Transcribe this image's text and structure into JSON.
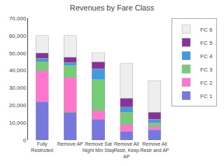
{
  "chart_data": {
    "type": "bar",
    "title": "Revenues by Fare Class",
    "stacked": true,
    "categories": [
      "Fully\nRestricted",
      "Remove AP",
      "Remove Sat\nNight Min Stay",
      "Remove All\nRestr, Keep\nAP",
      "Remove All\nRestr and AP"
    ],
    "series": [
      {
        "name": "FC 1",
        "color": "#7777dd",
        "values": [
          22000,
          16000,
          12000,
          5000,
          6000
        ]
      },
      {
        "name": "FC 2",
        "color": "#ff77cc",
        "values": [
          18000,
          20000,
          5000,
          4000,
          2000
        ]
      },
      {
        "name": "FC 3",
        "color": "#77cc77",
        "values": [
          5000,
          7000,
          18000,
          7000,
          2000
        ]
      },
      {
        "name": "FC 4",
        "color": "#4499dd",
        "values": [
          2000,
          1500,
          6000,
          3000,
          2000
        ]
      },
      {
        "name": "FC 5",
        "color": "#883399",
        "values": [
          3000,
          3000,
          4000,
          5000,
          4000
        ]
      },
      {
        "name": "FC 6",
        "color": "#eeeeee",
        "values": [
          10000,
          12500,
          5000,
          20000,
          18000
        ]
      }
    ],
    "ylim": [
      0,
      70000
    ],
    "yticks": [
      0,
      {
        "value": 10000,
        "label": "10,000"
      },
      {
        "value": 20000,
        "label": "20,000"
      },
      {
        "value": 30000,
        "label": "30,000"
      },
      {
        "value": 40000,
        "label": "40,000"
      },
      {
        "value": 50000,
        "label": "50,000"
      },
      {
        "value": 60000,
        "label": "60,000"
      },
      {
        "value": 70000,
        "label": "70,000"
      }
    ],
    "grid": false,
    "legend": "right"
  }
}
